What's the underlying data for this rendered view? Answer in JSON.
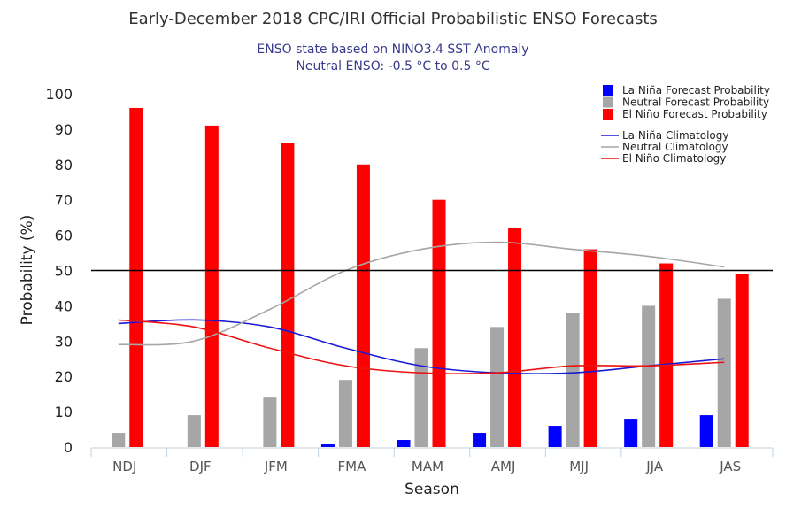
{
  "chart_data": {
    "type": "bar",
    "title": "Early-December 2018 CPC/IRI Official Probabilistic ENSO Forecasts",
    "subtitle_lines": [
      "ENSO state based on NINO3.4 SST Anomaly",
      "Neutral ENSO: -0.5 °C to 0.5 °C"
    ],
    "xlabel": "Season",
    "ylabel": "Probability (%)",
    "ylim": [
      0,
      100
    ],
    "yticks": [
      0,
      10,
      20,
      30,
      40,
      50,
      60,
      70,
      80,
      90,
      100
    ],
    "reference_line": 50,
    "categories": [
      "NDJ",
      "DJF",
      "JFM",
      "FMA",
      "MAM",
      "AMJ",
      "MJJ",
      "JJA",
      "JAS"
    ],
    "series": [
      {
        "name": "La Niña Forecast Probability",
        "color": "#0000ff",
        "values": [
          0,
          0,
          0,
          1,
          2,
          4,
          6,
          8,
          9
        ]
      },
      {
        "name": "Neutral Forecast Probability",
        "color": "#a6a6a6",
        "values": [
          4,
          9,
          14,
          19,
          28,
          34,
          38,
          40,
          42
        ]
      },
      {
        "name": "El Niño Forecast Probability",
        "color": "#ff0000",
        "values": [
          96,
          91,
          86,
          80,
          70,
          62,
          56,
          52,
          49
        ]
      }
    ],
    "climatology": [
      {
        "name": "La Niña Climatology",
        "color": "#1a1ad6",
        "values": [
          35,
          36,
          34,
          28,
          23,
          21,
          21,
          23,
          25
        ]
      },
      {
        "name": "Neutral Climatology",
        "color": "#a6a6a6",
        "values": [
          29,
          30,
          39,
          50,
          56,
          58,
          56,
          54,
          51
        ]
      },
      {
        "name": "El Niño Climatology",
        "color": "#ee1111",
        "values": [
          36,
          34,
          28,
          23,
          21,
          21,
          23,
          23,
          24
        ]
      }
    ],
    "grid": false,
    "legend_position": "top-right"
  }
}
